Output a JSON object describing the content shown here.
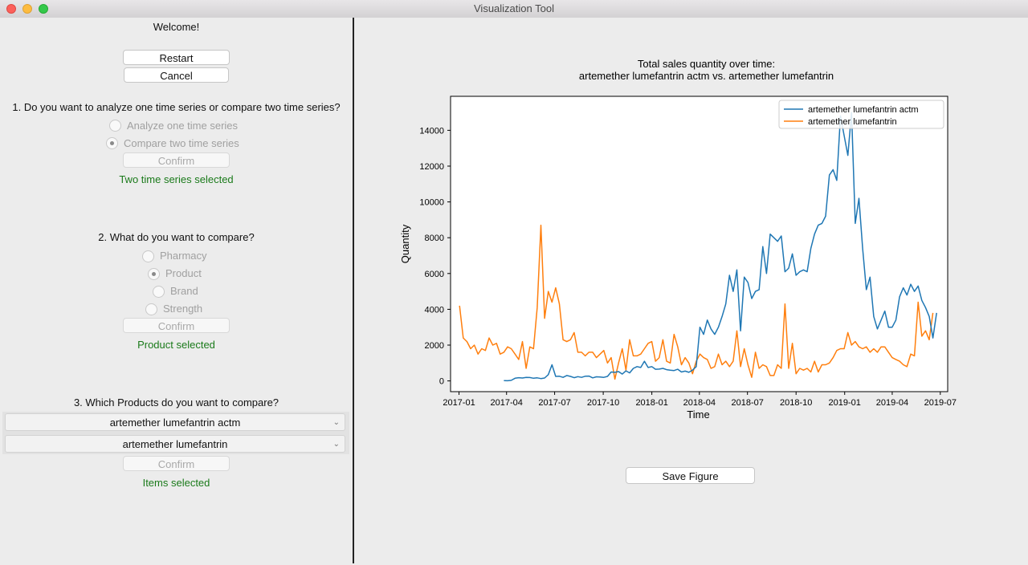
{
  "window": {
    "title": "Visualization Tool"
  },
  "left": {
    "welcome": "Welcome!",
    "restart_label": "Restart",
    "cancel_label": "Cancel",
    "q1": {
      "question": "1. Do you want to analyze one time series or compare two time series?",
      "options": [
        "Analyze one time series",
        "Compare two time series"
      ],
      "selected": "Compare two time series",
      "confirm_label": "Confirm",
      "status": "Two time series selected"
    },
    "q2": {
      "question": "2. What do you want to compare?",
      "options": [
        "Pharmacy",
        "Product",
        "Brand",
        "Strength"
      ],
      "selected": "Product",
      "confirm_label": "Confirm",
      "status": "Product selected"
    },
    "q3": {
      "question": "3. Which Products do you want to compare?",
      "select1": "artemether lumefantrin actm",
      "select2": "artemether lumefantrin",
      "confirm_label": "Confirm",
      "status": "Items selected"
    }
  },
  "right": {
    "save_label": "Save Figure"
  },
  "colors": {
    "series1": "#1f77b4",
    "series2": "#ff7f0e",
    "status_green": "#1a7a1a"
  },
  "chart_data": {
    "type": "line",
    "title": "Total sales quantity over time:\nartemether lumefantrin actm vs. artemether lumefantrin",
    "xlabel": "Time",
    "ylabel": "Quantity",
    "xlim": [
      "2016-12-16",
      "2019-07-15"
    ],
    "ylim": [
      -600,
      15900
    ],
    "xticks": [
      "2017-01",
      "2017-04",
      "2017-07",
      "2017-10",
      "2018-01",
      "2018-04",
      "2018-07",
      "2018-10",
      "2019-01",
      "2019-04",
      "2019-07"
    ],
    "yticks": [
      0,
      2000,
      4000,
      6000,
      8000,
      10000,
      12000,
      14000
    ],
    "legend": "top-right",
    "grid": false,
    "series": [
      {
        "name": "artemether lumefantrin actm",
        "points": [
          [
            "2017-03-27",
            20
          ],
          [
            "2017-04-03",
            10
          ],
          [
            "2017-04-10",
            30
          ],
          [
            "2017-04-17",
            150
          ],
          [
            "2017-04-24",
            180
          ],
          [
            "2017-05-01",
            160
          ],
          [
            "2017-05-08",
            200
          ],
          [
            "2017-05-15",
            190
          ],
          [
            "2017-05-22",
            150
          ],
          [
            "2017-05-29",
            170
          ],
          [
            "2017-06-05",
            130
          ],
          [
            "2017-06-12",
            160
          ],
          [
            "2017-06-19",
            350
          ],
          [
            "2017-06-26",
            900
          ],
          [
            "2017-07-03",
            250
          ],
          [
            "2017-07-10",
            260
          ],
          [
            "2017-07-17",
            200
          ],
          [
            "2017-07-24",
            300
          ],
          [
            "2017-07-31",
            250
          ],
          [
            "2017-08-07",
            180
          ],
          [
            "2017-08-14",
            240
          ],
          [
            "2017-08-21",
            200
          ],
          [
            "2017-08-28",
            260
          ],
          [
            "2017-09-04",
            270
          ],
          [
            "2017-09-11",
            170
          ],
          [
            "2017-09-18",
            230
          ],
          [
            "2017-09-25",
            220
          ],
          [
            "2017-10-02",
            200
          ],
          [
            "2017-10-09",
            250
          ],
          [
            "2017-10-16",
            500
          ],
          [
            "2017-10-23",
            480
          ],
          [
            "2017-10-30",
            520
          ],
          [
            "2017-11-06",
            380
          ],
          [
            "2017-11-13",
            560
          ],
          [
            "2017-11-20",
            450
          ],
          [
            "2017-11-27",
            700
          ],
          [
            "2017-12-04",
            800
          ],
          [
            "2017-12-11",
            750
          ],
          [
            "2017-12-18",
            1100
          ],
          [
            "2017-12-25",
            750
          ],
          [
            "2018-01-01",
            800
          ],
          [
            "2018-01-08",
            650
          ],
          [
            "2018-01-15",
            660
          ],
          [
            "2018-01-22",
            700
          ],
          [
            "2018-01-29",
            630
          ],
          [
            "2018-02-05",
            600
          ],
          [
            "2018-02-12",
            580
          ],
          [
            "2018-02-19",
            650
          ],
          [
            "2018-02-26",
            500
          ],
          [
            "2018-03-05",
            550
          ],
          [
            "2018-03-12",
            480
          ],
          [
            "2018-03-19",
            600
          ],
          [
            "2018-03-26",
            800
          ],
          [
            "2018-04-02",
            3000
          ],
          [
            "2018-04-09",
            2600
          ],
          [
            "2018-04-16",
            3400
          ],
          [
            "2018-04-23",
            2900
          ],
          [
            "2018-04-30",
            2600
          ],
          [
            "2018-05-07",
            3000
          ],
          [
            "2018-05-14",
            3600
          ],
          [
            "2018-05-21",
            4300
          ],
          [
            "2018-05-28",
            5900
          ],
          [
            "2018-06-04",
            5000
          ],
          [
            "2018-06-11",
            6200
          ],
          [
            "2018-06-18",
            2800
          ],
          [
            "2018-06-25",
            5800
          ],
          [
            "2018-07-02",
            5500
          ],
          [
            "2018-07-09",
            4600
          ],
          [
            "2018-07-16",
            5000
          ],
          [
            "2018-07-23",
            5100
          ],
          [
            "2018-07-30",
            7500
          ],
          [
            "2018-08-06",
            6000
          ],
          [
            "2018-08-13",
            8200
          ],
          [
            "2018-08-20",
            8000
          ],
          [
            "2018-08-27",
            7800
          ],
          [
            "2018-09-03",
            8100
          ],
          [
            "2018-09-10",
            6100
          ],
          [
            "2018-09-17",
            6300
          ],
          [
            "2018-09-24",
            7100
          ],
          [
            "2018-10-01",
            5900
          ],
          [
            "2018-10-08",
            6100
          ],
          [
            "2018-10-15",
            6200
          ],
          [
            "2018-10-22",
            6100
          ],
          [
            "2018-10-29",
            7400
          ],
          [
            "2018-11-05",
            8200
          ],
          [
            "2018-11-12",
            8700
          ],
          [
            "2018-11-19",
            8800
          ],
          [
            "2018-11-26",
            9200
          ],
          [
            "2018-12-03",
            11500
          ],
          [
            "2018-12-10",
            11800
          ],
          [
            "2018-12-17",
            11200
          ],
          [
            "2018-12-24",
            14800
          ],
          [
            "2018-12-31",
            13700
          ],
          [
            "2019-01-07",
            12600
          ],
          [
            "2019-01-14",
            15000
          ],
          [
            "2019-01-21",
            8800
          ],
          [
            "2019-01-28",
            10200
          ],
          [
            "2019-02-04",
            7400
          ],
          [
            "2019-02-11",
            5100
          ],
          [
            "2019-02-18",
            5800
          ],
          [
            "2019-02-25",
            3600
          ],
          [
            "2019-03-04",
            2900
          ],
          [
            "2019-03-11",
            3400
          ],
          [
            "2019-03-18",
            3900
          ],
          [
            "2019-03-25",
            3000
          ],
          [
            "2019-04-01",
            3000
          ],
          [
            "2019-04-08",
            3400
          ],
          [
            "2019-04-15",
            4700
          ],
          [
            "2019-04-22",
            5200
          ],
          [
            "2019-04-29",
            4800
          ],
          [
            "2019-05-06",
            5400
          ],
          [
            "2019-05-13",
            5000
          ],
          [
            "2019-05-20",
            5300
          ],
          [
            "2019-05-27",
            4500
          ],
          [
            "2019-06-03",
            4100
          ],
          [
            "2019-06-10",
            3600
          ],
          [
            "2019-06-17",
            2400
          ],
          [
            "2019-06-24",
            3800
          ]
        ]
      },
      {
        "name": "artemether lumefantrin",
        "points": [
          [
            "2017-01-02",
            4200
          ],
          [
            "2017-01-09",
            2400
          ],
          [
            "2017-01-16",
            2200
          ],
          [
            "2017-01-23",
            1800
          ],
          [
            "2017-01-30",
            2000
          ],
          [
            "2017-02-06",
            1500
          ],
          [
            "2017-02-13",
            1800
          ],
          [
            "2017-02-20",
            1700
          ],
          [
            "2017-02-27",
            2400
          ],
          [
            "2017-03-06",
            2000
          ],
          [
            "2017-03-13",
            2100
          ],
          [
            "2017-03-20",
            1500
          ],
          [
            "2017-03-27",
            1600
          ],
          [
            "2017-04-03",
            1900
          ],
          [
            "2017-04-10",
            1800
          ],
          [
            "2017-04-17",
            1500
          ],
          [
            "2017-04-24",
            1200
          ],
          [
            "2017-05-01",
            2200
          ],
          [
            "2017-05-08",
            700
          ],
          [
            "2017-05-15",
            1900
          ],
          [
            "2017-05-22",
            1800
          ],
          [
            "2017-05-29",
            4100
          ],
          [
            "2017-06-05",
            8700
          ],
          [
            "2017-06-12",
            3500
          ],
          [
            "2017-06-19",
            5000
          ],
          [
            "2017-06-26",
            4400
          ],
          [
            "2017-07-03",
            5200
          ],
          [
            "2017-07-10",
            4300
          ],
          [
            "2017-07-17",
            2300
          ],
          [
            "2017-07-24",
            2200
          ],
          [
            "2017-07-31",
            2300
          ],
          [
            "2017-08-07",
            2700
          ],
          [
            "2017-08-14",
            1600
          ],
          [
            "2017-08-21",
            1600
          ],
          [
            "2017-08-28",
            1400
          ],
          [
            "2017-09-04",
            1600
          ],
          [
            "2017-09-11",
            1600
          ],
          [
            "2017-09-18",
            1300
          ],
          [
            "2017-09-25",
            1500
          ],
          [
            "2017-10-02",
            1700
          ],
          [
            "2017-10-09",
            1000
          ],
          [
            "2017-10-16",
            1300
          ],
          [
            "2017-10-23",
            100
          ],
          [
            "2017-10-30",
            1000
          ],
          [
            "2017-11-06",
            1800
          ],
          [
            "2017-11-13",
            600
          ],
          [
            "2017-11-20",
            2300
          ],
          [
            "2017-11-27",
            1400
          ],
          [
            "2017-12-04",
            1400
          ],
          [
            "2017-12-11",
            1500
          ],
          [
            "2017-12-18",
            1800
          ],
          [
            "2017-12-25",
            2100
          ],
          [
            "2018-01-01",
            2200
          ],
          [
            "2018-01-08",
            1100
          ],
          [
            "2018-01-15",
            1300
          ],
          [
            "2018-01-22",
            2300
          ],
          [
            "2018-01-29",
            1100
          ],
          [
            "2018-02-05",
            1000
          ],
          [
            "2018-02-12",
            2600
          ],
          [
            "2018-02-19",
            1900
          ],
          [
            "2018-02-26",
            900
          ],
          [
            "2018-03-05",
            1300
          ],
          [
            "2018-03-12",
            1000
          ],
          [
            "2018-03-19",
            400
          ],
          [
            "2018-03-26",
            1100
          ],
          [
            "2018-04-02",
            1500
          ],
          [
            "2018-04-09",
            1300
          ],
          [
            "2018-04-16",
            1200
          ],
          [
            "2018-04-23",
            700
          ],
          [
            "2018-04-30",
            800
          ],
          [
            "2018-05-07",
            1500
          ],
          [
            "2018-05-14",
            900
          ],
          [
            "2018-05-21",
            1100
          ],
          [
            "2018-05-28",
            800
          ],
          [
            "2018-06-04",
            1100
          ],
          [
            "2018-06-11",
            2800
          ],
          [
            "2018-06-18",
            800
          ],
          [
            "2018-06-25",
            1800
          ],
          [
            "2018-07-02",
            900
          ],
          [
            "2018-07-09",
            200
          ],
          [
            "2018-07-16",
            1600
          ],
          [
            "2018-07-23",
            700
          ],
          [
            "2018-07-30",
            900
          ],
          [
            "2018-08-06",
            800
          ],
          [
            "2018-08-13",
            300
          ],
          [
            "2018-08-20",
            300
          ],
          [
            "2018-08-27",
            900
          ],
          [
            "2018-09-03",
            700
          ],
          [
            "2018-09-10",
            4300
          ],
          [
            "2018-09-17",
            700
          ],
          [
            "2018-09-24",
            2100
          ],
          [
            "2018-10-01",
            400
          ],
          [
            "2018-10-08",
            700
          ],
          [
            "2018-10-15",
            600
          ],
          [
            "2018-10-22",
            700
          ],
          [
            "2018-10-29",
            500
          ],
          [
            "2018-11-05",
            1100
          ],
          [
            "2018-11-12",
            500
          ],
          [
            "2018-11-19",
            900
          ],
          [
            "2018-11-26",
            900
          ],
          [
            "2018-12-03",
            1000
          ],
          [
            "2018-12-10",
            1300
          ],
          [
            "2018-12-17",
            1700
          ],
          [
            "2018-12-24",
            1800
          ],
          [
            "2018-12-31",
            1800
          ],
          [
            "2019-01-07",
            2700
          ],
          [
            "2019-01-14",
            2000
          ],
          [
            "2019-01-21",
            2200
          ],
          [
            "2019-01-28",
            1900
          ],
          [
            "2019-02-04",
            1800
          ],
          [
            "2019-02-11",
            1900
          ],
          [
            "2019-02-18",
            1600
          ],
          [
            "2019-02-25",
            1800
          ],
          [
            "2019-03-04",
            1600
          ],
          [
            "2019-03-11",
            1900
          ],
          [
            "2019-03-18",
            1900
          ],
          [
            "2019-03-25",
            1600
          ],
          [
            "2019-04-01",
            1300
          ],
          [
            "2019-04-08",
            1200
          ],
          [
            "2019-04-15",
            1100
          ],
          [
            "2019-04-22",
            900
          ],
          [
            "2019-04-29",
            800
          ],
          [
            "2019-05-06",
            1500
          ],
          [
            "2019-05-13",
            1400
          ],
          [
            "2019-05-20",
            4400
          ],
          [
            "2019-05-27",
            2500
          ],
          [
            "2019-06-03",
            2800
          ],
          [
            "2019-06-10",
            2300
          ],
          [
            "2019-06-17",
            3800
          ]
        ]
      }
    ]
  }
}
